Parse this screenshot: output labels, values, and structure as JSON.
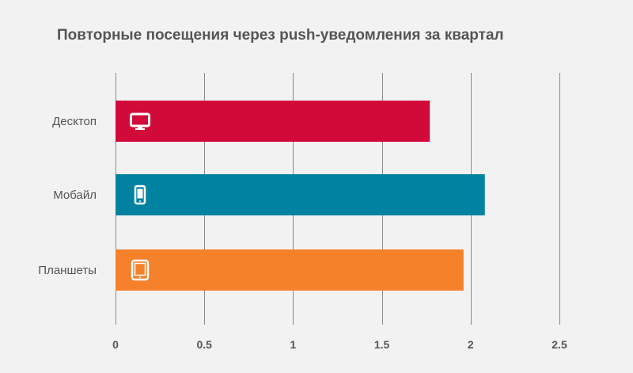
{
  "chart_data": {
    "type": "bar",
    "orientation": "horizontal",
    "title": "Повторные посещения через push-уведомления за квартал",
    "categories": [
      "Десктоп",
      "Мобайл",
      "Планшеты"
    ],
    "values": [
      1.77,
      2.08,
      1.96
    ],
    "xlim": [
      0,
      2.5
    ],
    "x_ticks": [
      "0",
      "0.5",
      "1",
      "1.5",
      "2",
      "2.5"
    ],
    "grid": "vertical",
    "colors": [
      "#d20a3a",
      "#0082a0",
      "#f5812a"
    ],
    "icons": [
      "monitor-icon",
      "smartphone-icon",
      "tablet-icon"
    ]
  }
}
